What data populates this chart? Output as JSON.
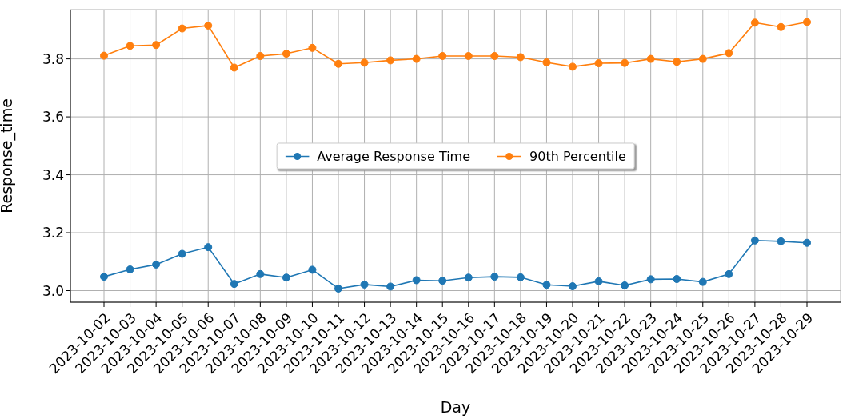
{
  "chart_data": {
    "type": "line",
    "xlabel": "Day",
    "ylabel": "Response_time",
    "categories": [
      "2023-10-02",
      "2023-10-03",
      "2023-10-04",
      "2023-10-05",
      "2023-10-06",
      "2023-10-07",
      "2023-10-08",
      "2023-10-09",
      "2023-10-10",
      "2023-10-11",
      "2023-10-12",
      "2023-10-13",
      "2023-10-14",
      "2023-10-15",
      "2023-10-16",
      "2023-10-17",
      "2023-10-18",
      "2023-10-19",
      "2023-10-20",
      "2023-10-21",
      "2023-10-22",
      "2023-10-23",
      "2023-10-24",
      "2023-10-25",
      "2023-10-26",
      "2023-10-27",
      "2023-10-28",
      "2023-10-29"
    ],
    "series": [
      {
        "name": "Average Response Time",
        "color": "#1f77b4",
        "values": [
          3.048,
          3.073,
          3.09,
          3.127,
          3.15,
          3.023,
          3.057,
          3.045,
          3.072,
          3.007,
          3.021,
          3.014,
          3.036,
          3.034,
          3.045,
          3.048,
          3.046,
          3.02,
          3.015,
          3.032,
          3.018,
          3.039,
          3.04,
          3.03,
          3.057,
          3.173,
          3.17,
          3.165
        ]
      },
      {
        "name": "90th Percentile",
        "color": "#ff7f0e",
        "values": [
          3.811,
          3.845,
          3.848,
          3.905,
          3.915,
          3.77,
          3.81,
          3.818,
          3.838,
          3.783,
          3.787,
          3.795,
          3.8,
          3.81,
          3.81,
          3.81,
          3.806,
          3.788,
          3.773,
          3.785,
          3.786,
          3.8,
          3.79,
          3.8,
          3.82,
          3.925,
          3.91,
          3.927
        ]
      }
    ],
    "ylim": [
      2.96,
      3.97
    ],
    "yticks": [
      {
        "value": 3,
        "label": "3.0"
      },
      3.2,
      3.4,
      3.6,
      3.8
    ],
    "grid": true,
    "legend": "center",
    "marker": "circle",
    "line_style": "solid"
  }
}
